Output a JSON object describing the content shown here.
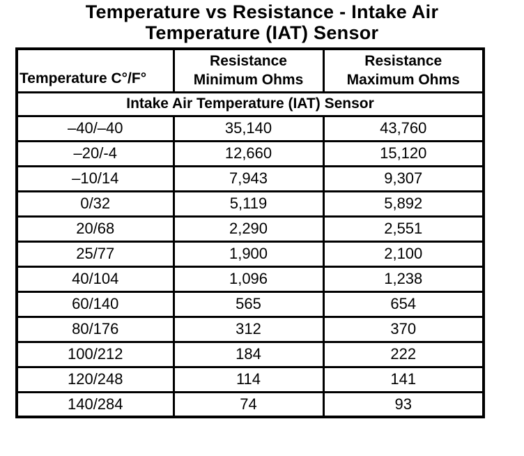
{
  "title": {
    "line1": "Temperature vs Resistance - Intake Air",
    "line2": "Temperature (IAT) Sensor"
  },
  "table": {
    "columns": [
      {
        "label": "Temperature C°/F°"
      },
      {
        "line1": "Resistance",
        "line2": "Minimum Ohms"
      },
      {
        "line1": "Resistance",
        "line2": "Maximum Ohms"
      }
    ],
    "section_header": "Intake Air Temperature (IAT) Sensor",
    "rows": [
      [
        "–40/–40",
        "35,140",
        "43,760"
      ],
      [
        "–20/-4",
        "12,660",
        "15,120"
      ],
      [
        "–10/14",
        "7,943",
        "9,307"
      ],
      [
        "0/32",
        "5,119",
        "5,892"
      ],
      [
        "20/68",
        "2,290",
        "2,551"
      ],
      [
        "25/77",
        "1,900",
        "2,100"
      ],
      [
        "40/104",
        "1,096",
        "1,238"
      ],
      [
        "60/140",
        "565",
        "654"
      ],
      [
        "80/176",
        "312",
        "370"
      ],
      [
        "100/212",
        "184",
        "222"
      ],
      [
        "120/248",
        "114",
        "141"
      ],
      [
        "140/284",
        "74",
        "93"
      ]
    ]
  },
  "colors": {
    "text": "#000000",
    "border": "#000000",
    "background": "#ffffff"
  }
}
